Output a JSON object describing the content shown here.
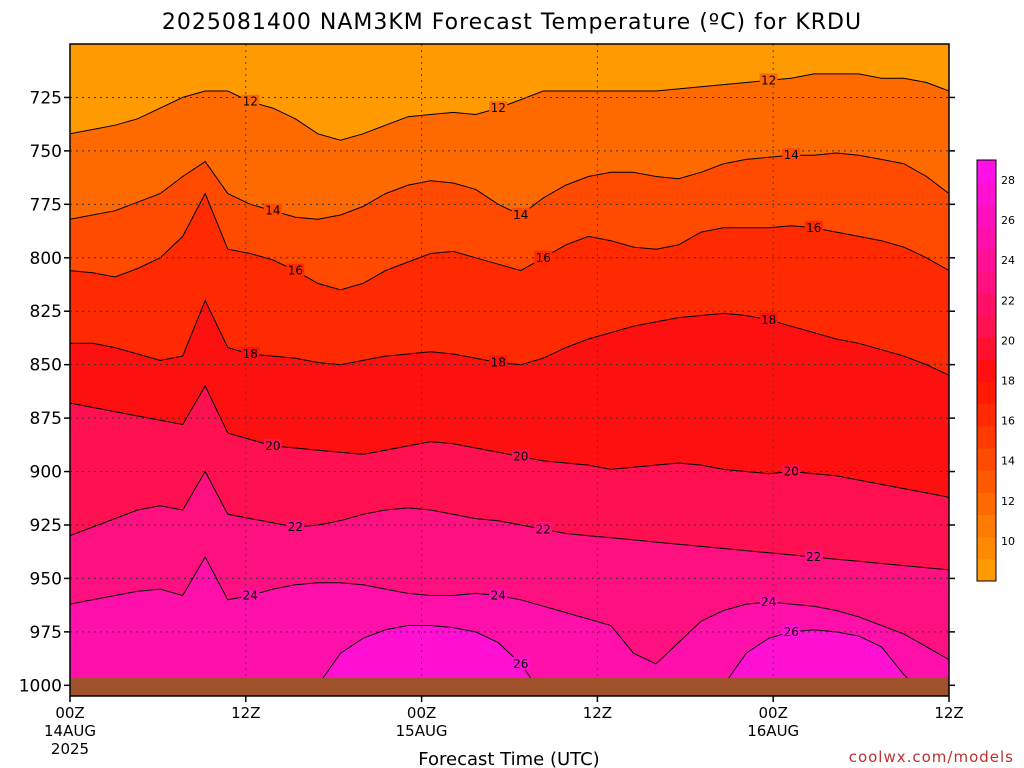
{
  "chart_data": {
    "type": "heatmap",
    "title": "2025081400 NAM3KM Forecast Temperature (ºC) for KRDU",
    "xlabel": "Forecast Time (UTC)",
    "ylabel": "",
    "credit": "coolwx.com/models",
    "x_ticks": [
      {
        "hour": 0,
        "label": "00Z",
        "sub": "14AUG",
        "sub2": "2025"
      },
      {
        "hour": 12,
        "label": "12Z",
        "sub": "",
        "sub2": ""
      },
      {
        "hour": 24,
        "label": "00Z",
        "sub": "15AUG",
        "sub2": ""
      },
      {
        "hour": 36,
        "label": "12Z",
        "sub": "",
        "sub2": ""
      },
      {
        "hour": 48,
        "label": "00Z",
        "sub": "16AUG",
        "sub2": ""
      },
      {
        "hour": 60,
        "label": "12Z",
        "sub": "",
        "sub2": ""
      }
    ],
    "xlim": [
      0,
      60
    ],
    "y_ticks": [
      "725",
      "750",
      "775",
      "800",
      "825",
      "850",
      "875",
      "900",
      "925",
      "950",
      "975",
      "1000"
    ],
    "ylim": [
      700,
      1005
    ],
    "colorbar": {
      "ticks": [
        "10",
        "12",
        "14",
        "16",
        "18",
        "20",
        "22",
        "24",
        "26",
        "28"
      ],
      "levels": [
        8,
        10,
        11,
        12,
        13,
        14,
        15,
        16,
        17,
        18,
        19,
        20,
        21,
        22,
        23,
        24,
        25,
        26,
        27,
        28,
        29
      ],
      "colors": [
        "#ff9a00",
        "#ff8a00",
        "#ff7a00",
        "#ff6a00",
        "#ff5a00",
        "#ff4a00",
        "#ff3a00",
        "#ff2a00",
        "#ff1a00",
        "#ff1010",
        "#ff1030",
        "#ff1050",
        "#ff1068",
        "#ff1080",
        "#ff1095",
        "#ff10aa",
        "#ff10bf",
        "#ff10d2",
        "#ff10e6"
      ]
    },
    "contour_labels": [
      "12",
      "14",
      "16",
      "18",
      "20",
      "22",
      "24",
      "26"
    ],
    "series": [
      {
        "name": "12",
        "pressure": [
          742,
          740,
          738,
          735,
          730,
          725,
          722,
          722,
          727,
          730,
          735,
          742,
          745,
          742,
          738,
          734,
          733,
          732,
          733,
          730,
          726,
          722,
          722,
          722,
          722,
          722,
          722,
          721,
          720,
          719,
          718,
          717,
          716,
          714,
          714,
          714,
          716,
          716,
          718,
          722
        ]
      },
      {
        "name": "14",
        "pressure": [
          782,
          780,
          778,
          774,
          770,
          762,
          755,
          770,
          775,
          778,
          781,
          782,
          780,
          776,
          770,
          766,
          764,
          765,
          768,
          775,
          780,
          772,
          766,
          762,
          760,
          760,
          762,
          763,
          760,
          756,
          754,
          753,
          752,
          752,
          751,
          752,
          754,
          756,
          762,
          770
        ]
      },
      {
        "name": "16",
        "pressure": [
          806,
          807,
          809,
          805,
          800,
          790,
          770,
          796,
          798,
          801,
          806,
          812,
          815,
          812,
          806,
          802,
          798,
          797,
          800,
          803,
          806,
          800,
          794,
          790,
          792,
          795,
          796,
          794,
          788,
          786,
          786,
          786,
          785,
          786,
          788,
          790,
          792,
          795,
          800,
          806
        ]
      },
      {
        "name": "18",
        "pressure": [
          840,
          840,
          842,
          845,
          848,
          846,
          820,
          842,
          845,
          846,
          847,
          849,
          850,
          848,
          846,
          845,
          844,
          845,
          847,
          849,
          850,
          847,
          842,
          838,
          835,
          832,
          830,
          828,
          827,
          826,
          827,
          829,
          832,
          835,
          838,
          840,
          843,
          846,
          850,
          855
        ]
      },
      {
        "name": "20",
        "pressure": [
          868,
          870,
          872,
          874,
          876,
          878,
          860,
          882,
          885,
          888,
          889,
          890,
          891,
          892,
          890,
          888,
          886,
          887,
          889,
          891,
          893,
          895,
          896,
          897,
          899,
          898,
          897,
          896,
          897,
          899,
          900,
          901,
          900,
          901,
          902,
          904,
          906,
          908,
          910,
          912
        ]
      },
      {
        "name": "22",
        "pressure": [
          930,
          926,
          922,
          918,
          916,
          918,
          900,
          920,
          922,
          924,
          926,
          925,
          923,
          920,
          918,
          917,
          918,
          920,
          922,
          923,
          925,
          927,
          929,
          930,
          931,
          932,
          933,
          934,
          935,
          936,
          937,
          938,
          939,
          940,
          941,
          942,
          943,
          944,
          945,
          946
        ]
      },
      {
        "name": "24",
        "pressure": [
          962,
          960,
          958,
          956,
          955,
          958,
          940,
          960,
          958,
          955,
          953,
          952,
          952,
          953,
          955,
          957,
          958,
          958,
          957,
          958,
          960,
          963,
          966,
          969,
          972,
          985,
          990,
          980,
          970,
          965,
          962,
          961,
          962,
          963,
          965,
          968,
          972,
          976,
          982,
          988
        ]
      },
      {
        "name": "26",
        "pressure": [
          1005,
          1005,
          1005,
          1005,
          1005,
          1005,
          1005,
          1005,
          1005,
          1005,
          1005,
          1000,
          985,
          978,
          974,
          972,
          972,
          973,
          975,
          980,
          990,
          1005,
          1005,
          1005,
          1005,
          1005,
          1005,
          1005,
          1005,
          1000,
          985,
          978,
          975,
          974,
          975,
          977,
          982,
          995,
          1005,
          1005
        ]
      }
    ]
  }
}
